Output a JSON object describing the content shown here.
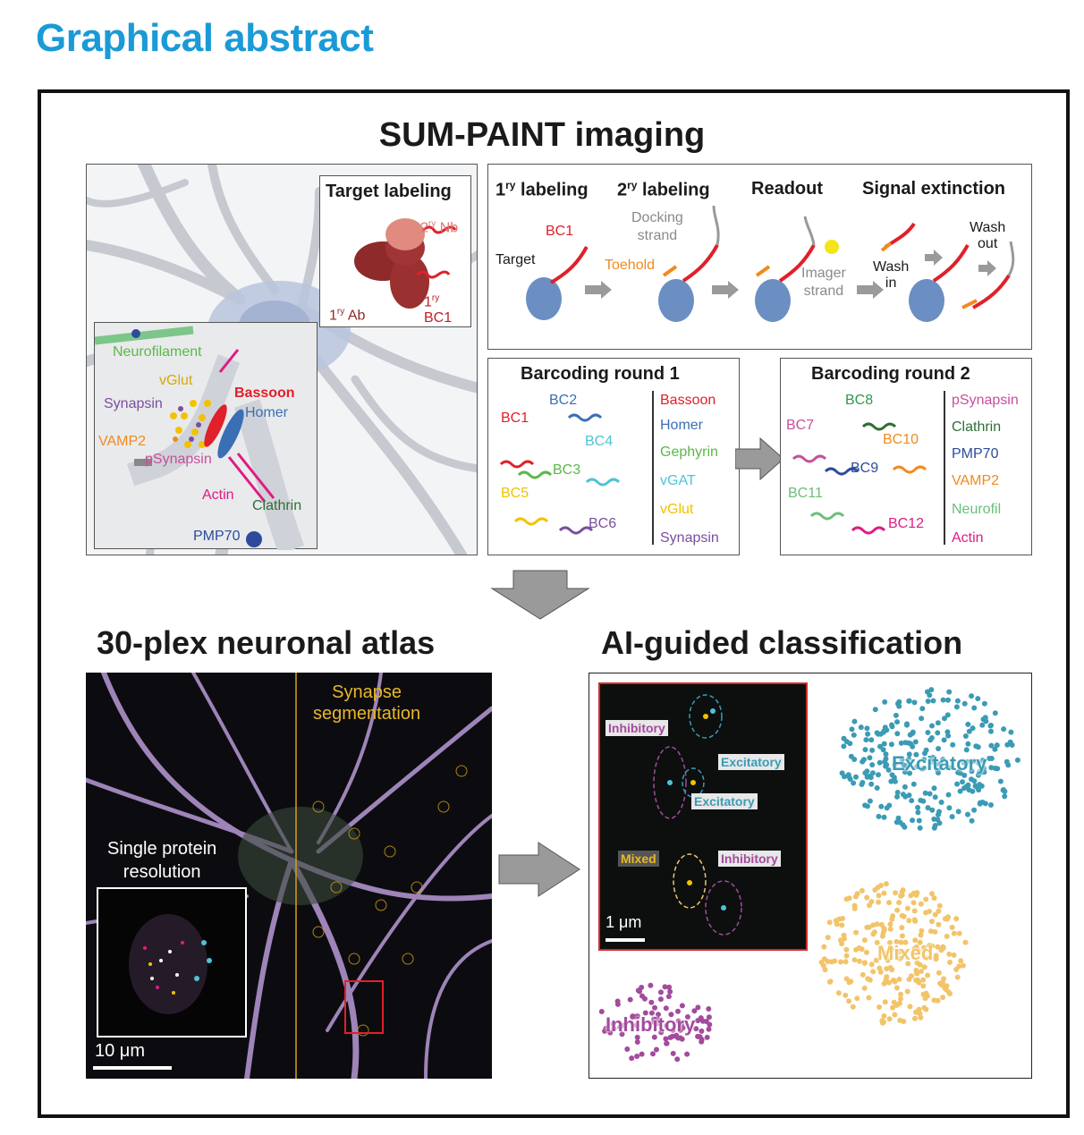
{
  "page_title": "Graphical abstract",
  "top_heading": "SUM-PAINT imaging",
  "target_labeling": {
    "title": "Target labeling",
    "nb_label": "2",
    "nb_sup": "ry",
    "nb_suffix": " Nb",
    "ab_prefix": "1",
    "ab_sup": "ry",
    "ab_suffix": " Ab",
    "bc_prefix": "1",
    "bc_sup": "ry",
    "bc_line2": "BC1"
  },
  "synapse_labels": {
    "neurofilament": "Neurofilament",
    "vglut": "vGlut",
    "synapsin": "Synapsin",
    "bassoon": "Bassoon",
    "homer": "Homer",
    "vamp2": "VAMP2",
    "psynapsin": "pSynapsin",
    "actin": "Actin",
    "clathrin": "Clathrin",
    "pmp70": "PMP70"
  },
  "steps": {
    "s1_prefix": "1",
    "s1_sup": "ry",
    "s1_suffix": " labeling",
    "s2_prefix": "2",
    "s2_sup": "ry",
    "s2_suffix": " labeling",
    "s3": "Readout",
    "s4": "Signal extinction",
    "bc1": "BC1",
    "target": "Target",
    "docking_1": "Docking",
    "docking_2": "strand",
    "toehold": "Toehold",
    "imager_1": "Imager",
    "imager_2": "strand",
    "wash_in_1": "Wash",
    "wash_in_2": "in",
    "wash_out_1": "Wash",
    "wash_out_2": "out"
  },
  "round1": {
    "title": "Barcoding round 1",
    "barcodes": [
      "BC1",
      "BC2",
      "BC3",
      "BC4",
      "BC5",
      "BC6"
    ],
    "targets": [
      "Bassoon",
      "Homer",
      "Gephyrin",
      "vGAT",
      "vGlut",
      "Synapsin"
    ]
  },
  "round2": {
    "title": "Barcoding round 2",
    "barcodes": [
      "BC7",
      "BC8",
      "BC9",
      "BC10",
      "BC11",
      "BC12"
    ],
    "targets": [
      "pSynapsin",
      "Clathrin",
      "PMP70",
      "VAMP2",
      "Neurofil",
      "Actin"
    ]
  },
  "atlas": {
    "heading": "30-plex neuronal atlas",
    "segmentation_1": "Synapse",
    "segmentation_2": "segmentation",
    "single_1": "Single protein",
    "single_2": "resolution",
    "scale": "10 μm"
  },
  "classification": {
    "heading": "AI-guided classification",
    "inset_labels": [
      "Inhibitory",
      "Excitatory",
      "Excitatory",
      "Mixed",
      "Inhibitory"
    ],
    "inset_scale": "1 μm",
    "cluster_excitatory": "Excitatory",
    "cluster_mixed": "Mixed",
    "cluster_inhibitory": "Inhibitory"
  },
  "colors": {
    "title_blue": "#1a9ad6",
    "bassoon": "#e0202a",
    "homer": "#3a6fb5",
    "gephyrin": "#5bb846",
    "vgat": "#4ec3d6",
    "vglut": "#f2c200",
    "synapsin": "#7a4ea0",
    "psynapsin": "#c94f9a",
    "clathrin": "#2f6e35",
    "pmp70": "#2d4b9a",
    "vamp2": "#f28a1e",
    "neurofil": "#6cbf7a",
    "actin": "#e01b84",
    "excitatory": "#3b9bb5",
    "mixed": "#f2c46a",
    "inhibitory": "#a34b9c"
  }
}
